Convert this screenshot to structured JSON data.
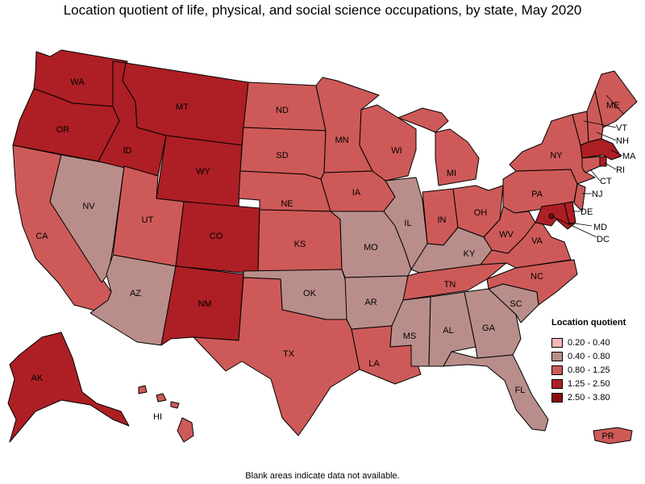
{
  "title": "Location quotient of life, physical, and social science occupations, by state, May 2020",
  "footnote": "Blank areas indicate data not available.",
  "legend": {
    "title": "Location quotient",
    "items": [
      {
        "label": "0.20 - 0.40",
        "color": "#f4b6b6"
      },
      {
        "label": "0.40 - 0.80",
        "color": "#b98e8a"
      },
      {
        "label": "0.80 - 1.25",
        "color": "#cd5a58"
      },
      {
        "label": "1.25 - 2.50",
        "color": "#ad1f24"
      },
      {
        "label": "2.50 - 3.80",
        "color": "#8a0c10"
      }
    ]
  },
  "states": [
    {
      "abbr": "WA",
      "class": "1.25 - 2.50"
    },
    {
      "abbr": "OR",
      "class": "1.25 - 2.50"
    },
    {
      "abbr": "CA",
      "class": "0.80 - 1.25"
    },
    {
      "abbr": "NV",
      "class": "0.40 - 0.80"
    },
    {
      "abbr": "ID",
      "class": "1.25 - 2.50"
    },
    {
      "abbr": "MT",
      "class": "1.25 - 2.50"
    },
    {
      "abbr": "WY",
      "class": "1.25 - 2.50"
    },
    {
      "abbr": "UT",
      "class": "0.80 - 1.25"
    },
    {
      "abbr": "AZ",
      "class": "0.40 - 0.80"
    },
    {
      "abbr": "CO",
      "class": "1.25 - 2.50"
    },
    {
      "abbr": "NM",
      "class": "1.25 - 2.50"
    },
    {
      "abbr": "ND",
      "class": "0.80 - 1.25"
    },
    {
      "abbr": "SD",
      "class": "0.80 - 1.25"
    },
    {
      "abbr": "NE",
      "class": "0.80 - 1.25"
    },
    {
      "abbr": "KS",
      "class": "0.80 - 1.25"
    },
    {
      "abbr": "OK",
      "class": "0.40 - 0.80"
    },
    {
      "abbr": "TX",
      "class": "0.80 - 1.25"
    },
    {
      "abbr": "MN",
      "class": "0.80 - 1.25"
    },
    {
      "abbr": "IA",
      "class": "0.80 - 1.25"
    },
    {
      "abbr": "MO",
      "class": "0.40 - 0.80"
    },
    {
      "abbr": "AR",
      "class": "0.40 - 0.80"
    },
    {
      "abbr": "LA",
      "class": "0.80 - 1.25"
    },
    {
      "abbr": "WI",
      "class": "0.80 - 1.25"
    },
    {
      "abbr": "IL",
      "class": "0.40 - 0.80"
    },
    {
      "abbr": "MI",
      "class": "0.80 - 1.25"
    },
    {
      "abbr": "IN",
      "class": "0.80 - 1.25"
    },
    {
      "abbr": "OH",
      "class": "0.80 - 1.25"
    },
    {
      "abbr": "KY",
      "class": "0.40 - 0.80"
    },
    {
      "abbr": "TN",
      "class": "0.80 - 1.25"
    },
    {
      "abbr": "MS",
      "class": "0.40 - 0.80"
    },
    {
      "abbr": "AL",
      "class": "0.40 - 0.80"
    },
    {
      "abbr": "GA",
      "class": "0.40 - 0.80"
    },
    {
      "abbr": "FL",
      "class": "0.40 - 0.80"
    },
    {
      "abbr": "SC",
      "class": "0.40 - 0.80"
    },
    {
      "abbr": "NC",
      "class": "0.80 - 1.25"
    },
    {
      "abbr": "VA",
      "class": "0.80 - 1.25"
    },
    {
      "abbr": "WV",
      "class": "0.80 - 1.25"
    },
    {
      "abbr": "PA",
      "class": "0.80 - 1.25"
    },
    {
      "abbr": "NY",
      "class": "0.80 - 1.25"
    },
    {
      "abbr": "VT",
      "class": "0.80 - 1.25"
    },
    {
      "abbr": "NH",
      "class": "0.80 - 1.25"
    },
    {
      "abbr": "ME",
      "class": "0.80 - 1.25"
    },
    {
      "abbr": "MA",
      "class": "1.25 - 2.50"
    },
    {
      "abbr": "RI",
      "class": "1.25 - 2.50"
    },
    {
      "abbr": "CT",
      "class": "0.80 - 1.25"
    },
    {
      "abbr": "NJ",
      "class": "0.80 - 1.25"
    },
    {
      "abbr": "DE",
      "class": "1.25 - 2.50"
    },
    {
      "abbr": "MD",
      "class": "1.25 - 2.50"
    },
    {
      "abbr": "DC",
      "class": "2.50 - 3.80"
    },
    {
      "abbr": "AK",
      "class": "1.25 - 2.50"
    },
    {
      "abbr": "HI",
      "class": "0.80 - 1.25"
    },
    {
      "abbr": "PR",
      "class": "0.80 - 1.25"
    }
  ]
}
